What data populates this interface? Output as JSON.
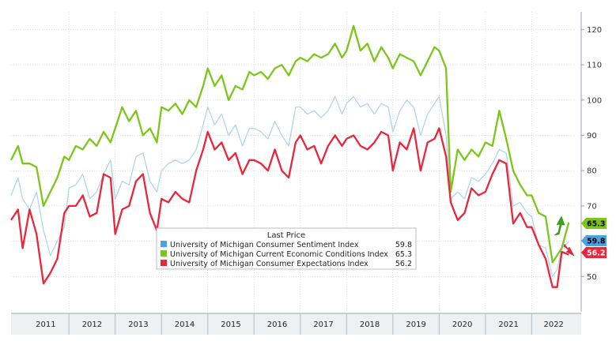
{
  "chart_data": {
    "type": "line",
    "title": "",
    "xlabel": "",
    "ylabel": "",
    "x_range": [
      2010.75,
      2022.95
    ],
    "ylim": [
      40,
      125
    ],
    "y_ticks": [
      50,
      60,
      70,
      80,
      90,
      100,
      110,
      120
    ],
    "year_labels": [
      "2011",
      "2012",
      "2013",
      "2014",
      "2015",
      "2016",
      "2017",
      "2018",
      "2019",
      "2020",
      "2021",
      "2022"
    ],
    "grid": true,
    "y_axis_side": "right",
    "legend": {
      "title": "Last Price",
      "placement": "bottom-center"
    },
    "series": [
      {
        "name": "University of Michigan Consumer Sentiment Index",
        "last_price": "59.8",
        "color": "#a9d3ea",
        "legend_color": "#4da3e0",
        "tag_color": "#4da3e0",
        "points": [
          [
            2010.75,
            73
          ],
          [
            2010.9,
            78
          ],
          [
            2011.0,
            72
          ],
          [
            2011.15,
            69
          ],
          [
            2011.3,
            74
          ],
          [
            2011.45,
            63
          ],
          [
            2011.6,
            56
          ],
          [
            2011.75,
            60
          ],
          [
            2011.9,
            64
          ],
          [
            2012.0,
            75
          ],
          [
            2012.15,
            76
          ],
          [
            2012.3,
            79
          ],
          [
            2012.45,
            72
          ],
          [
            2012.6,
            74
          ],
          [
            2012.75,
            79
          ],
          [
            2012.9,
            83
          ],
          [
            2013.0,
            72
          ],
          [
            2013.15,
            77
          ],
          [
            2013.3,
            76
          ],
          [
            2013.45,
            84
          ],
          [
            2013.6,
            85
          ],
          [
            2013.75,
            77
          ],
          [
            2013.9,
            74
          ],
          [
            2014.0,
            80
          ],
          [
            2014.15,
            82
          ],
          [
            2014.3,
            83
          ],
          [
            2014.45,
            82
          ],
          [
            2014.6,
            83
          ],
          [
            2014.75,
            86
          ],
          [
            2014.9,
            93
          ],
          [
            2015.0,
            98
          ],
          [
            2015.15,
            93
          ],
          [
            2015.3,
            96
          ],
          [
            2015.45,
            90
          ],
          [
            2015.6,
            93
          ],
          [
            2015.75,
            87
          ],
          [
            2015.9,
            92
          ],
          [
            2016.0,
            92
          ],
          [
            2016.15,
            91
          ],
          [
            2016.3,
            89
          ],
          [
            2016.45,
            94
          ],
          [
            2016.6,
            90
          ],
          [
            2016.75,
            87
          ],
          [
            2016.9,
            98
          ],
          [
            2017.0,
            98
          ],
          [
            2017.15,
            96
          ],
          [
            2017.3,
            97
          ],
          [
            2017.45,
            95
          ],
          [
            2017.6,
            97
          ],
          [
            2017.75,
            101
          ],
          [
            2017.9,
            96
          ],
          [
            2018.0,
            99
          ],
          [
            2018.15,
            101
          ],
          [
            2018.3,
            98
          ],
          [
            2018.45,
            99
          ],
          [
            2018.6,
            96
          ],
          [
            2018.75,
            99
          ],
          [
            2018.9,
            98
          ],
          [
            2019.0,
            91
          ],
          [
            2019.15,
            97
          ],
          [
            2019.3,
            100
          ],
          [
            2019.45,
            98
          ],
          [
            2019.6,
            90
          ],
          [
            2019.75,
            96
          ],
          [
            2019.9,
            99
          ],
          [
            2020.0,
            101
          ],
          [
            2020.15,
            90
          ],
          [
            2020.25,
            72
          ],
          [
            2020.4,
            74
          ],
          [
            2020.55,
            72
          ],
          [
            2020.7,
            78
          ],
          [
            2020.85,
            77
          ],
          [
            2021.0,
            79
          ],
          [
            2021.15,
            82
          ],
          [
            2021.3,
            86
          ],
          [
            2021.45,
            85
          ],
          [
            2021.6,
            70
          ],
          [
            2021.75,
            71
          ],
          [
            2021.9,
            68
          ],
          [
            2022.0,
            67
          ],
          [
            2022.15,
            59
          ],
          [
            2022.3,
            58
          ],
          [
            2022.45,
            50
          ],
          [
            2022.55,
            52
          ],
          [
            2022.65,
            58
          ],
          [
            2022.8,
            59.8
          ]
        ]
      },
      {
        "name": "University of Michigan Current Economic Conditions Index",
        "last_price": "65.3",
        "color": "#7cc61c",
        "legend_color": "#7cc61c",
        "tag_color": "#7cc61c",
        "points": [
          [
            2010.75,
            83
          ],
          [
            2010.9,
            87
          ],
          [
            2011.0,
            82
          ],
          [
            2011.15,
            82
          ],
          [
            2011.3,
            81
          ],
          [
            2011.45,
            70
          ],
          [
            2011.6,
            74
          ],
          [
            2011.75,
            78
          ],
          [
            2011.9,
            84
          ],
          [
            2012.0,
            83
          ],
          [
            2012.15,
            87
          ],
          [
            2012.3,
            86
          ],
          [
            2012.45,
            89
          ],
          [
            2012.6,
            87
          ],
          [
            2012.75,
            91
          ],
          [
            2012.9,
            88
          ],
          [
            2013.0,
            92
          ],
          [
            2013.15,
            98
          ],
          [
            2013.3,
            94
          ],
          [
            2013.45,
            97
          ],
          [
            2013.6,
            90
          ],
          [
            2013.75,
            92
          ],
          [
            2013.9,
            88
          ],
          [
            2014.0,
            98
          ],
          [
            2014.15,
            97
          ],
          [
            2014.3,
            99
          ],
          [
            2014.45,
            96
          ],
          [
            2014.6,
            100
          ],
          [
            2014.75,
            98
          ],
          [
            2014.9,
            104
          ],
          [
            2015.0,
            109
          ],
          [
            2015.15,
            104
          ],
          [
            2015.3,
            107
          ],
          [
            2015.45,
            100
          ],
          [
            2015.6,
            104
          ],
          [
            2015.75,
            103
          ],
          [
            2015.9,
            108
          ],
          [
            2016.0,
            107
          ],
          [
            2016.15,
            108
          ],
          [
            2016.3,
            106
          ],
          [
            2016.45,
            109
          ],
          [
            2016.6,
            110
          ],
          [
            2016.75,
            107
          ],
          [
            2016.9,
            111
          ],
          [
            2017.0,
            112
          ],
          [
            2017.15,
            111
          ],
          [
            2017.3,
            113
          ],
          [
            2017.45,
            112
          ],
          [
            2017.6,
            113
          ],
          [
            2017.75,
            116
          ],
          [
            2017.9,
            112
          ],
          [
            2018.0,
            114
          ],
          [
            2018.15,
            121
          ],
          [
            2018.3,
            114
          ],
          [
            2018.45,
            116
          ],
          [
            2018.6,
            111
          ],
          [
            2018.75,
            115
          ],
          [
            2018.9,
            112
          ],
          [
            2019.0,
            109
          ],
          [
            2019.15,
            113
          ],
          [
            2019.3,
            112
          ],
          [
            2019.45,
            111
          ],
          [
            2019.6,
            107
          ],
          [
            2019.75,
            111
          ],
          [
            2019.9,
            115
          ],
          [
            2020.0,
            114
          ],
          [
            2020.15,
            109
          ],
          [
            2020.25,
            74
          ],
          [
            2020.4,
            86
          ],
          [
            2020.55,
            83
          ],
          [
            2020.7,
            86
          ],
          [
            2020.85,
            84
          ],
          [
            2021.0,
            88
          ],
          [
            2021.15,
            87
          ],
          [
            2021.3,
            97
          ],
          [
            2021.45,
            89
          ],
          [
            2021.6,
            80
          ],
          [
            2021.75,
            76
          ],
          [
            2021.9,
            73
          ],
          [
            2022.0,
            73
          ],
          [
            2022.15,
            68
          ],
          [
            2022.3,
            67
          ],
          [
            2022.45,
            54
          ],
          [
            2022.55,
            56
          ],
          [
            2022.65,
            58
          ],
          [
            2022.8,
            65.3
          ]
        ]
      },
      {
        "name": "University of Michigan Consumer Expectations Index",
        "last_price": "56.2",
        "color": "#e8263c",
        "legend_color": "#e8263c",
        "tag_color": "#e8263c",
        "points": [
          [
            2010.75,
            66
          ],
          [
            2010.9,
            69
          ],
          [
            2011.0,
            58
          ],
          [
            2011.15,
            69
          ],
          [
            2011.3,
            62
          ],
          [
            2011.45,
            48
          ],
          [
            2011.6,
            51
          ],
          [
            2011.75,
            55
          ],
          [
            2011.9,
            68
          ],
          [
            2012.0,
            70
          ],
          [
            2012.15,
            70
          ],
          [
            2012.3,
            73
          ],
          [
            2012.45,
            67
          ],
          [
            2012.6,
            68
          ],
          [
            2012.75,
            79
          ],
          [
            2012.9,
            78
          ],
          [
            2013.0,
            62
          ],
          [
            2013.15,
            69
          ],
          [
            2013.3,
            70
          ],
          [
            2013.45,
            77
          ],
          [
            2013.6,
            79
          ],
          [
            2013.75,
            68
          ],
          [
            2013.9,
            63
          ],
          [
            2014.0,
            72
          ],
          [
            2014.15,
            71
          ],
          [
            2014.3,
            74
          ],
          [
            2014.45,
            72
          ],
          [
            2014.6,
            71
          ],
          [
            2014.75,
            80
          ],
          [
            2014.9,
            86
          ],
          [
            2015.0,
            91
          ],
          [
            2015.15,
            86
          ],
          [
            2015.3,
            88
          ],
          [
            2015.45,
            83
          ],
          [
            2015.6,
            85
          ],
          [
            2015.75,
            79
          ],
          [
            2015.9,
            83
          ],
          [
            2016.0,
            83
          ],
          [
            2016.15,
            82
          ],
          [
            2016.3,
            80
          ],
          [
            2016.45,
            86
          ],
          [
            2016.6,
            80
          ],
          [
            2016.75,
            78
          ],
          [
            2016.9,
            88
          ],
          [
            2017.0,
            90
          ],
          [
            2017.15,
            86
          ],
          [
            2017.3,
            87
          ],
          [
            2017.45,
            82
          ],
          [
            2017.6,
            87
          ],
          [
            2017.75,
            90
          ],
          [
            2017.9,
            87
          ],
          [
            2018.0,
            89
          ],
          [
            2018.15,
            90
          ],
          [
            2018.3,
            87
          ],
          [
            2018.45,
            86
          ],
          [
            2018.6,
            88
          ],
          [
            2018.75,
            91
          ],
          [
            2018.9,
            90
          ],
          [
            2019.0,
            80
          ],
          [
            2019.15,
            88
          ],
          [
            2019.3,
            86
          ],
          [
            2019.45,
            92
          ],
          [
            2019.6,
            80
          ],
          [
            2019.75,
            88
          ],
          [
            2019.9,
            89
          ],
          [
            2020.0,
            92
          ],
          [
            2020.15,
            84
          ],
          [
            2020.25,
            71
          ],
          [
            2020.4,
            66
          ],
          [
            2020.55,
            68
          ],
          [
            2020.7,
            75
          ],
          [
            2020.85,
            73
          ],
          [
            2021.0,
            74
          ],
          [
            2021.15,
            79
          ],
          [
            2021.3,
            83
          ],
          [
            2021.45,
            82
          ],
          [
            2021.6,
            65
          ],
          [
            2021.75,
            68
          ],
          [
            2021.9,
            64
          ],
          [
            2022.0,
            64
          ],
          [
            2022.15,
            59
          ],
          [
            2022.3,
            55
          ],
          [
            2022.45,
            47
          ],
          [
            2022.55,
            47
          ],
          [
            2022.65,
            57
          ],
          [
            2022.8,
            56.2
          ]
        ]
      }
    ]
  }
}
